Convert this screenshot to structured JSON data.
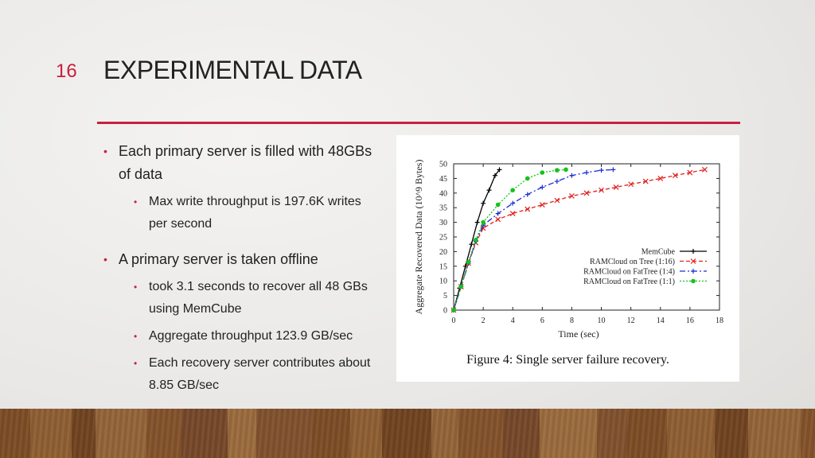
{
  "slide": {
    "number": "16",
    "title": "EXPERIMENTAL DATA",
    "accent_color": "#c8203d"
  },
  "bullets": [
    {
      "text": "Each primary server is filled with 48GBs of data",
      "sub": [
        "Max write throughput is 197.6K writes per second"
      ]
    },
    {
      "text": "A primary server is taken offline",
      "sub": [
        "took 3.1 seconds to recover all 48 GBs using MemCube",
        "Aggregate throughput 123.9 GB/sec",
        "Each recovery server contributes about 8.85 GB/sec"
      ]
    }
  ],
  "figure": {
    "caption": "Figure 4: Single server failure recovery."
  },
  "chart_data": {
    "type": "line",
    "title": "",
    "xlabel": "Time (sec)",
    "ylabel": "Aggregate Recovered Data (10^9 Bytes)",
    "xlim": [
      0,
      18
    ],
    "ylim": [
      0,
      50
    ],
    "x_ticks": [
      "0",
      "2",
      "4",
      "6",
      "8",
      "10",
      "12",
      "14",
      "16",
      "18"
    ],
    "y_ticks": [
      "0",
      "5",
      "10",
      "15",
      "20",
      "25",
      "30",
      "35",
      "40",
      "45",
      "50"
    ],
    "grid": false,
    "legend": "bottom-right",
    "series": [
      {
        "name": "MemCube",
        "color": "#000000",
        "dash": "solid",
        "x": [
          0,
          0.4,
          0.8,
          1.2,
          1.6,
          2.0,
          2.4,
          2.8,
          3.1
        ],
        "y": [
          0,
          7.5,
          15,
          22.5,
          30,
          36.5,
          41,
          46,
          48
        ]
      },
      {
        "name": "RAMCloud on Tree (1:16)",
        "color": "#e0201c",
        "dash": "dashed",
        "x": [
          0,
          0.5,
          1.0,
          1.5,
          2.0,
          3,
          4,
          5,
          6,
          7,
          8,
          9,
          10,
          11,
          12,
          13,
          14,
          15,
          16,
          17
        ],
        "y": [
          0,
          8,
          16,
          23,
          28,
          31,
          33,
          34.5,
          36,
          37.5,
          39,
          40,
          41,
          42,
          43,
          44,
          45,
          46,
          47,
          48
        ]
      },
      {
        "name": "RAMCloud on FatTree (1:4)",
        "color": "#1a2fd6",
        "dash": "dashdot",
        "x": [
          0,
          0.5,
          1.0,
          1.5,
          2.0,
          3,
          4,
          5,
          6,
          7,
          8,
          9,
          10,
          10.8
        ],
        "y": [
          0,
          8,
          16,
          23.5,
          29,
          33,
          36.5,
          39.5,
          42,
          44,
          46,
          47,
          47.8,
          48
        ]
      },
      {
        "name": "RAMCloud on FatTree (1:1)",
        "color": "#14c21a",
        "dash": "dotted",
        "x": [
          0,
          0.5,
          1.0,
          1.5,
          2.0,
          3,
          4,
          5,
          6,
          7,
          7.6
        ],
        "y": [
          0,
          8,
          16.5,
          24,
          30,
          36,
          41,
          45,
          47,
          47.8,
          48
        ]
      }
    ]
  }
}
